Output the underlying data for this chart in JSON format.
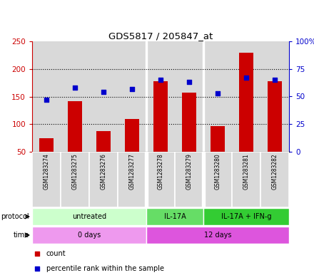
{
  "title": "GDS5817 / 205847_at",
  "samples": [
    "GSM1283274",
    "GSM1283275",
    "GSM1283276",
    "GSM1283277",
    "GSM1283278",
    "GSM1283279",
    "GSM1283280",
    "GSM1283281",
    "GSM1283282"
  ],
  "counts": [
    75,
    142,
    88,
    110,
    178,
    157,
    96,
    230,
    178
  ],
  "percentile_ranks": [
    47,
    58,
    54,
    57,
    65,
    63,
    53,
    67,
    65
  ],
  "ylim_left": [
    50,
    250
  ],
  "ylim_right": [
    0,
    100
  ],
  "yticks_left": [
    50,
    100,
    150,
    200,
    250
  ],
  "yticks_right": [
    0,
    25,
    50,
    75,
    100
  ],
  "ytick_labels_left": [
    "50",
    "100",
    "150",
    "200",
    "250"
  ],
  "ytick_labels_right": [
    "0",
    "25",
    "50",
    "75",
    "100%"
  ],
  "bar_color": "#cc0000",
  "dot_color": "#0000cc",
  "bar_width": 0.5,
  "protocol_labels": [
    "untreated",
    "IL-17A",
    "IL-17A + IFN-g"
  ],
  "protocol_colors": [
    "#ccffcc",
    "#66dd66",
    "#33cc33"
  ],
  "protocol_xranges": [
    [
      -0.5,
      3.5
    ],
    [
      3.5,
      5.5
    ],
    [
      5.5,
      8.5
    ]
  ],
  "time_labels": [
    "0 days",
    "12 days"
  ],
  "time_colors": [
    "#ee99ee",
    "#dd55dd"
  ],
  "time_xranges": [
    [
      -0.5,
      3.5
    ],
    [
      3.5,
      8.5
    ]
  ],
  "bg_plot": "#ffffff",
  "bg_sample": "#d9d9d9",
  "grid_color": "#000000",
  "legend_count_color": "#cc0000",
  "legend_dot_color": "#0000cc"
}
